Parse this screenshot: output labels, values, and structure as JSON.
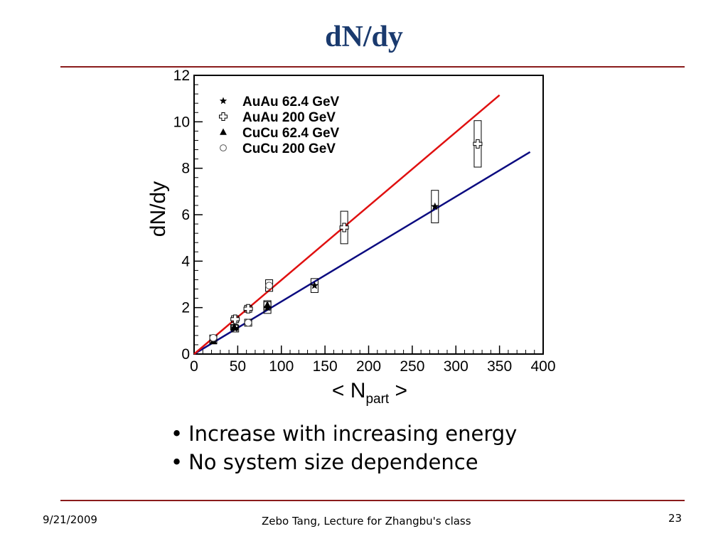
{
  "slide": {
    "title": "dN/dy",
    "bullets": [
      "Increase with increasing energy",
      "No system size dependence"
    ],
    "footer_date": "9/21/2009",
    "footer_center": "Zebo Tang, Lecture for Zhangbu's class",
    "page_number": "23"
  },
  "colors": {
    "title": "#1a3a6e",
    "rule": "#8a1c1c",
    "fit_62": "#0b0b80",
    "fit_200": "#e01010"
  },
  "chart_data": {
    "type": "scatter",
    "ylabel": "dN/dy",
    "xlabel_main": "< N",
    "xlabel_sub": "part",
    "xlabel_end": " >",
    "xlim": [
      0,
      400
    ],
    "ylim": [
      0,
      12
    ],
    "xticks": [
      0,
      50,
      100,
      150,
      200,
      250,
      300,
      350,
      400
    ],
    "yticks": [
      0,
      2,
      4,
      6,
      8,
      10,
      12
    ],
    "legend_position": "top-left",
    "series": [
      {
        "name": "AuAu 62.4 GeV",
        "marker": "star",
        "points": [
          {
            "x": 47,
            "y": 1.1,
            "sys": 0.15
          },
          {
            "x": 84,
            "y": 2.0,
            "sys": 0.25
          },
          {
            "x": 138,
            "y": 2.95,
            "sys": 0.3
          },
          {
            "x": 276,
            "y": 6.35,
            "sys": 0.7
          }
        ]
      },
      {
        "name": "AuAu 200  GeV",
        "marker": "cross",
        "points": [
          {
            "x": 47,
            "y": 1.5,
            "sys": 0.15
          },
          {
            "x": 62,
            "y": 1.95,
            "sys": 0.15
          },
          {
            "x": 172,
            "y": 5.45,
            "sys": 0.7
          },
          {
            "x": 325,
            "y": 9.05,
            "sys": 1.0
          }
        ]
      },
      {
        "name": "CuCu 62.4 GeV",
        "marker": "triangle",
        "points": [
          {
            "x": 22,
            "y": 0.55,
            "sys": 0.1
          },
          {
            "x": 46,
            "y": 1.15,
            "sys": 0.12
          },
          {
            "x": 84,
            "y": 2.1,
            "sys": 0.2
          }
        ]
      },
      {
        "name": "CuCu 200 GeV",
        "marker": "circle",
        "points": [
          {
            "x": 22,
            "y": 0.7,
            "sys": 0.12
          },
          {
            "x": 62,
            "y": 1.35,
            "sys": 0.15
          },
          {
            "x": 86,
            "y": 2.95,
            "sys": 0.25
          }
        ]
      }
    ],
    "fit_lines": [
      {
        "x": [
          0,
          385
        ],
        "y": [
          0,
          8.7
        ],
        "color": "#0b0b80"
      },
      {
        "x": [
          0,
          350
        ],
        "y": [
          0,
          11.15
        ],
        "color": "#e01010"
      }
    ]
  }
}
